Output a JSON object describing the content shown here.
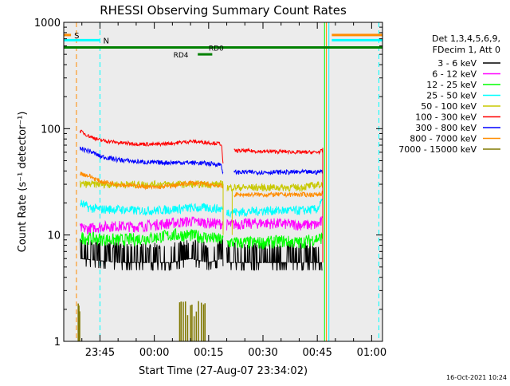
{
  "chart_data": {
    "type": "line",
    "title": "RHESSI Observing Summary Count Rates",
    "xlabel": "Start Time (27-Aug-07 23:34:02)",
    "ylabel": "Count Rate (s⁻¹ detector⁻¹)",
    "y_scale": "log",
    "ylim": [
      1,
      1000
    ],
    "xlim_minutes": [
      -10,
      78
    ],
    "x_ticks": [
      {
        "label": "23:45",
        "min": 0
      },
      {
        "label": "00:00",
        "min": 15
      },
      {
        "label": "00:15",
        "min": 30
      },
      {
        "label": "00:30",
        "min": 45
      },
      {
        "label": "00:45",
        "min": 60
      },
      {
        "label": "01:00",
        "min": 75
      }
    ],
    "y_ticks": [
      {
        "label": "1",
        "value": 1
      },
      {
        "label": "10",
        "value": 10
      },
      {
        "label": "100",
        "value": 100
      },
      {
        "label": "1000",
        "value": 1000
      }
    ],
    "grid": false,
    "legend_position": "right",
    "legend_header": [
      "Det 1,3,4,5,6,9,",
      "FDecim 1, Att 0"
    ],
    "series": [
      {
        "name": "3 - 6 keV",
        "color": "#000000",
        "segments": [
          {
            "x": [
              -5.5,
              5,
              10,
              15,
              20,
              25,
              30,
              34
            ],
            "y": [
              6,
              5.5,
              5.5,
              5.5,
              5.5,
              6,
              5.5,
              6
            ]
          },
          {
            "x": [
              35,
              40,
              45,
              50,
              55,
              61.5
            ],
            "y": [
              5.5,
              5.5,
              5.5,
              5.5,
              5.5,
              5.5
            ]
          }
        ]
      },
      {
        "name": "6 - 12 keV",
        "color": "#ff00ff",
        "segments": [
          {
            "x": [
              -5.5,
              -3,
              0,
              5,
              10,
              15,
              20,
              25,
              30,
              34
            ],
            "y": [
              11.5,
              11.5,
              12,
              12.2,
              12,
              12.5,
              13,
              13.5,
              13,
              12.8
            ]
          },
          {
            "x": [
              35,
              40,
              45,
              50,
              55,
              60,
              61.5
            ],
            "y": [
              12.5,
              12.8,
              13,
              12.8,
              12.5,
              12.5,
              13.5
            ]
          }
        ]
      },
      {
        "name": "12 - 25 keV",
        "color": "#00ff00",
        "segments": [
          {
            "x": [
              -5.5,
              0,
              5,
              10,
              15,
              20,
              25,
              30,
              34
            ],
            "y": [
              9.5,
              9.2,
              9,
              9.2,
              9.5,
              10,
              10,
              9.5,
              9
            ]
          },
          {
            "x": [
              35,
              40,
              45,
              50,
              55,
              61.5
            ],
            "y": [
              8.5,
              8.5,
              8.5,
              8.8,
              8.5,
              9.5
            ]
          }
        ]
      },
      {
        "name": "25 - 50 keV",
        "color": "#00ffff",
        "segments": [
          {
            "x": [
              -5.5,
              -3,
              0,
              5,
              10,
              15,
              20,
              25,
              30,
              34
            ],
            "y": [
              20,
              18,
              17.5,
              17.5,
              17,
              17,
              17.5,
              18,
              18,
              17.5
            ]
          },
          {
            "x": [
              35,
              40,
              45,
              50,
              55,
              60,
              61.5
            ],
            "y": [
              16.5,
              16.5,
              17,
              17,
              17,
              17.5,
              21
            ]
          }
        ]
      },
      {
        "name": "50 - 100 keV",
        "color": "#c8c800",
        "segments": [
          {
            "x": [
              -5.5,
              34
            ],
            "y": [
              30,
              30
            ]
          },
          {
            "x": [
              35,
              40,
              45,
              50,
              55,
              61.5
            ],
            "y": [
              28,
              28,
              28,
              28,
              28,
              30
            ]
          }
        ]
      },
      {
        "name": "100 - 300 keV",
        "color": "#ff0000",
        "segments": [
          {
            "x": [
              -5.5,
              -3,
              0,
              5,
              10,
              15,
              20,
              25,
              30,
              33.5,
              34
            ],
            "y": [
              95,
              85,
              78,
              74,
              72,
              71,
              73,
              76,
              74,
              72,
              45
            ]
          },
          {
            "x": [
              37,
              40,
              45,
              50,
              55,
              60,
              61.5
            ],
            "y": [
              62,
              62,
              61,
              61,
              60,
              60,
              62
            ]
          }
        ]
      },
      {
        "name": "300 - 800 keV",
        "color": "#0000ff",
        "segments": [
          {
            "x": [
              -5.5,
              -3,
              0,
              5,
              10,
              15,
              20,
              25,
              30,
              33.5,
              34
            ],
            "y": [
              65,
              62,
              55,
              51,
              49,
              48,
              48,
              48,
              47,
              46,
              37
            ]
          },
          {
            "x": [
              37,
              40,
              45,
              50,
              55,
              60,
              61.5
            ],
            "y": [
              39,
              39,
              39,
              39,
              39,
              39,
              40
            ]
          }
        ]
      },
      {
        "name": "800 - 7000 keV",
        "color": "#ff8c00",
        "segments": [
          {
            "x": [
              -5.5,
              -3,
              0,
              5,
              10,
              15,
              20,
              25,
              30,
              33.5,
              34
            ],
            "y": [
              38,
              36,
              32,
              30,
              29,
              28,
              29,
              31,
              30,
              29,
              27
            ]
          },
          {
            "x": [
              37,
              40,
              45,
              50,
              55,
              60,
              61.5
            ],
            "y": [
              24,
              24,
              24,
              24,
              24,
              24,
              25
            ]
          }
        ]
      },
      {
        "name": "7000 - 15000 keV",
        "color": "#807800",
        "segments": []
      }
    ],
    "event_bars": [
      {
        "label": "S",
        "color": "#ff8c00",
        "y_value": 760,
        "segments": [
          [
            -10,
            -8
          ]
        ]
      },
      {
        "label": "N",
        "color": "#00ffff",
        "y_value": 680,
        "segments": [
          [
            -10,
            0
          ]
        ]
      }
    ],
    "state_lines": [
      {
        "label": "RD0",
        "y_value": 580,
        "segments": [
          [
            -10,
            78
          ]
        ]
      },
      {
        "label": "RD4",
        "y_value": 500,
        "segments": [
          [
            27,
            31
          ]
        ]
      }
    ],
    "vlines": [
      {
        "x": -6.5,
        "color": "#ff8c00",
        "dash": true
      },
      {
        "x": 0,
        "color": "#00ffff",
        "dash": true
      },
      {
        "x": 62.5,
        "color": "#ff8c00",
        "dash": false
      },
      {
        "x": 63.2,
        "color": "#00ffff",
        "dash": false
      },
      {
        "x": 77,
        "color": "#00ffff",
        "dash": true
      },
      {
        "x": 62,
        "color": "#00ff00",
        "dash": false
      }
    ],
    "footer_date": "16-Oct-2021 10:24"
  }
}
